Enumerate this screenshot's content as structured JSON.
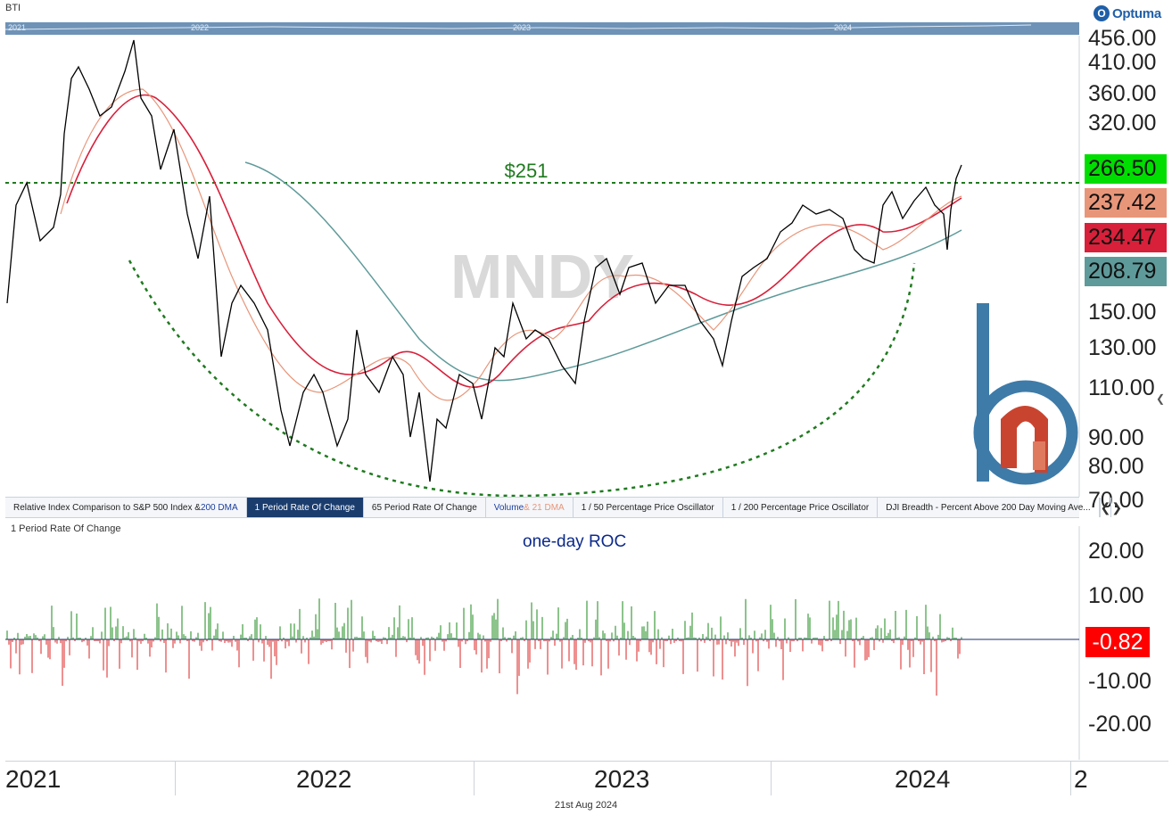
{
  "symbol": "BTI",
  "brand": {
    "logo_text": "Optuma",
    "logo_mark": "O",
    "accent": "#1f5fa8"
  },
  "overview_years": [
    "2021",
    "2022",
    "2023",
    "2024"
  ],
  "watermark": "MNDY",
  "annotation_level": "$251",
  "price_axis": [
    "456.00",
    "410.00",
    "360.00",
    "320.00",
    "150.00",
    "130.00",
    "110.00",
    "90.00",
    "80.00",
    "70.00"
  ],
  "price_tags": [
    {
      "value": "266.50",
      "color": "#00dd00"
    },
    {
      "value": "237.42",
      "color": "#e8967a"
    },
    {
      "value": "234.47",
      "color": "#d8203a"
    },
    {
      "value": "208.79",
      "color": "#5f9a9a"
    }
  ],
  "tabs": [
    {
      "label_a": "Relative Index Comparison to S&P 500 Index &",
      "label_b": " 200 DMA",
      "active": false
    },
    {
      "label_a": "1 Period Rate Of Change",
      "label_b": "",
      "active": true
    },
    {
      "label_a": "65 Period Rate Of Change",
      "label_b": "",
      "active": false
    },
    {
      "label_a": "Volume",
      "label_b": " & 21 DMA",
      "active": false
    },
    {
      "label_a": "1 / 50 Percentage Price Oscillator",
      "label_b": "",
      "active": false
    },
    {
      "label_a": "1 / 200 Percentage Price Oscillator",
      "label_b": "",
      "active": false
    },
    {
      "label_a": "DJI Breadth - Percent Above 200 Day Moving Ave...",
      "label_b": "",
      "active": false
    }
  ],
  "tab_nav": {
    "prev": "❮",
    "next": "❯"
  },
  "lower_panel_title": "1 Period Rate Of Change",
  "roc_label": "one-day ROC",
  "roc_axis": [
    "20.00",
    "10.00",
    "-10.00",
    "-20.00"
  ],
  "roc_current": "-0.82",
  "x_years": [
    "2021",
    "2022",
    "2023",
    "2024",
    "2"
  ],
  "footer_date": "21st Aug 2024",
  "colors": {
    "price": "#000000",
    "ma_short": "#e8967a",
    "ma_mid": "#d8203a",
    "ma_long": "#5f9a9a",
    "annotation": "#1f7a1f",
    "roc_up": "#1a8a1a",
    "roc_down": "#dd2222"
  }
}
